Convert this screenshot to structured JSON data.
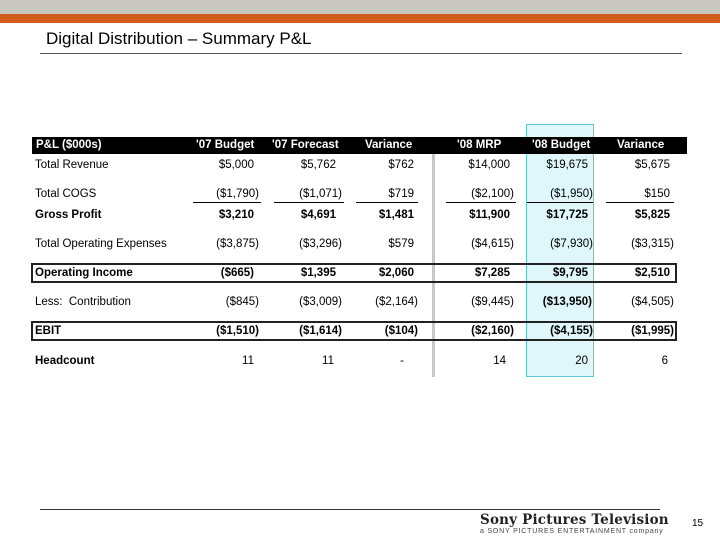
{
  "page": {
    "title": "Digital Distribution – Summary P&L",
    "page_number": "15"
  },
  "brand": {
    "name": "Sony Pictures Television",
    "tagline": "a SONY PICTURES ENTERTAINMENT company"
  },
  "table": {
    "headers": [
      "P&L ($000s)",
      "'07 Budget",
      "'07 Forecast",
      "Variance",
      "'08 MRP",
      "'08 Budget",
      "Variance"
    ],
    "rows": [
      {
        "label": "Total Revenue",
        "values": [
          "$5,000",
          "$5,762",
          "$762",
          "$14,000",
          "$19,675",
          "$5,675"
        ]
      },
      {
        "label": "Total COGS",
        "values": [
          "($1,790)",
          "($1,071)",
          "$719",
          "($2,100)",
          "($1,950)",
          "$150"
        ]
      },
      {
        "label": "Gross Profit",
        "values": [
          "$3,210",
          "$4,691",
          "$1,481",
          "$11,900",
          "$17,725",
          "$5,825"
        ]
      },
      {
        "label": "Total Operating Expenses",
        "values": [
          "($3,875)",
          "($3,296)",
          "$579",
          "($4,615)",
          "($7,930)",
          "($3,315)"
        ]
      },
      {
        "label": "Operating Income",
        "values": [
          "($665)",
          "$1,395",
          "$2,060",
          "$7,285",
          "$9,795",
          "$2,510"
        ]
      },
      {
        "label": "Less:  Contribution",
        "values": [
          "($845)",
          "($3,009)",
          "($2,164)",
          "($9,445)",
          "($13,950)",
          "($4,505)"
        ]
      },
      {
        "label": "EBIT",
        "values": [
          "($1,510)",
          "($1,614)",
          "($104)",
          "($2,160)",
          "($4,155)",
          "($1,995)"
        ]
      },
      {
        "label": "Headcount",
        "values": [
          "11",
          "11",
          "-",
          "14",
          "20",
          "6"
        ]
      }
    ]
  }
}
